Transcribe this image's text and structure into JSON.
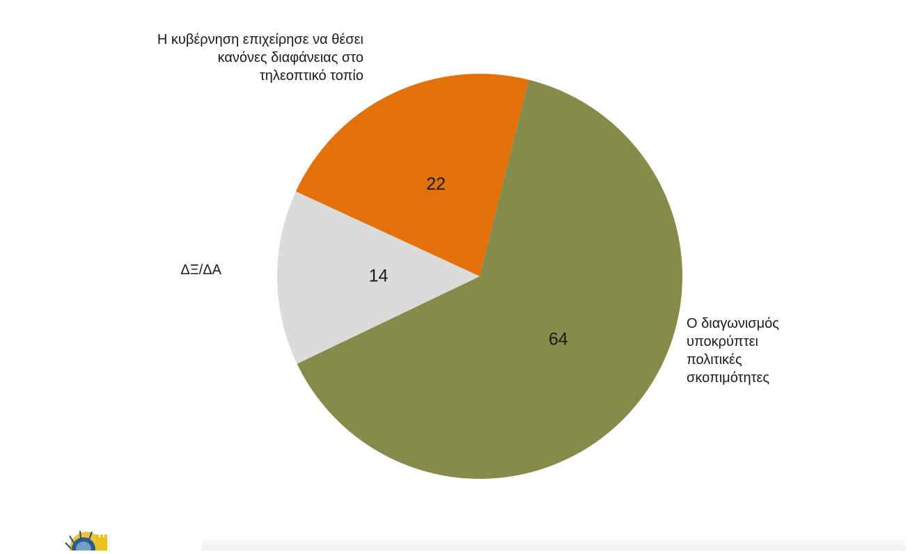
{
  "chart_data": {
    "type": "pie",
    "title": "",
    "start_angle_deg": 14,
    "direction": "clockwise",
    "slices": [
      {
        "label": "Ο διαγωνισμός υποκρύπτει πολιτικές σκοπιμότητες",
        "label_lines": "Ο διαγωνισμός\nυποκρύπτει\nπολιτικές\nσκοπιμότητες",
        "value": 64,
        "value_label": "64",
        "color": "#878B4A"
      },
      {
        "label": "ΔΞ/ΔΑ",
        "label_lines": "ΔΞ/ΔΑ",
        "value": 14,
        "value_label": "14",
        "color": "#DBDBDB"
      },
      {
        "label": "Η κυβέρνηση επιχείρησε να θέσει κανόνες διαφάνειας στο τηλεοπτικό τοπίο",
        "label_lines": "Η κυβέρνηση επιχείρησε να θέσει\nκανόνες διαφάνειας στο\nτηλεοπτικό τοπίο",
        "value": 22,
        "value_label": "22",
        "color": "#E2700B"
      }
    ]
  },
  "logo": {
    "name": "emblem-logo-icon"
  }
}
